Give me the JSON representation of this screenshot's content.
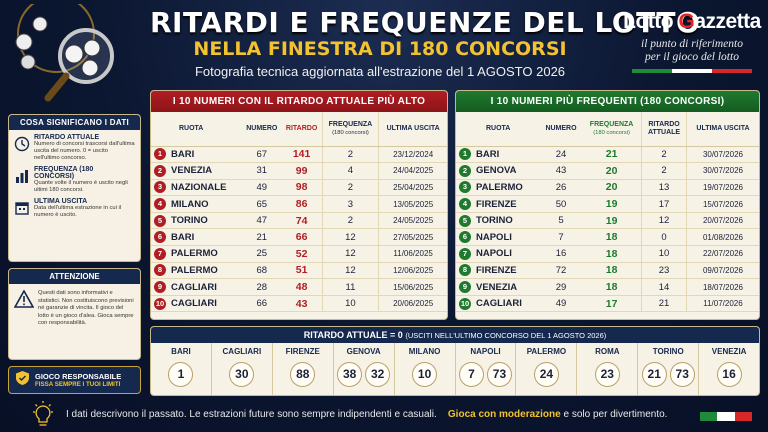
{
  "header": {
    "title": "RITARDI E FREQUENZE DEL LOTTO",
    "subtitle": "NELLA FINESTRA DI 180 CONCORSI",
    "tagline": "Fotografia tecnica aggiornata all'estrazione del 1 AGOSTO 2026",
    "brand_name_a": "Lotto ",
    "brand_name_g": "G",
    "brand_name_b": "azzetta",
    "brand_slogan_1": "il punto di riferimento",
    "brand_slogan_2": "per il gioco del lotto",
    "flag_colors": [
      "#1f8a3a",
      "#ffffff",
      "#d62828"
    ]
  },
  "info": {
    "heading": "COSA SIGNIFICANO I DATI",
    "items": [
      {
        "icon": "clock-icon",
        "title": "RITARDO ATTUALE",
        "text": "Numero di concorsi trascorsi dall'ultima uscita del numero. 0 = uscito nell'ultimo concorso."
      },
      {
        "icon": "bar-chart-icon",
        "title": "FREQUENZA (180 CONCORSI)",
        "text": "Quante volte il numero è uscito negli ultimi 180 concorsi."
      },
      {
        "icon": "calendar-icon",
        "title": "ULTIMA USCITA",
        "text": "Data dell'ultima estrazione in cui il numero è uscito."
      }
    ]
  },
  "warning": {
    "heading": "ATTENZIONE",
    "text": "Questi dati sono informativi e statistici. Non costituiscono previsioni né garanzie di vincita. Il gioco del lotto è un gioco d'alea. Gioca sempre con responsabilità."
  },
  "responsible": {
    "title": "GIOCO RESPONSABILE",
    "subtitle": "FISSA SEMPRE I TUOI LIMITI"
  },
  "ritardo_table": {
    "heading": "I 10 NUMERI CON IL RITARDO ATTUALE PIÙ ALTO",
    "columns": {
      "ruota": "RUOTA",
      "numero": "NUMERO",
      "ritardo": "RITARDO",
      "frequenza": "FREQUENZA",
      "frequenza_sub": "(180 concorsi)",
      "ultima": "ULTIMA USCITA"
    },
    "rows": [
      {
        "rank": "1",
        "ruota": "BARI",
        "numero": "67",
        "ritardo": "141",
        "frequenza": "2",
        "ultima": "23/12/2024"
      },
      {
        "rank": "2",
        "ruota": "VENEZIA",
        "numero": "31",
        "ritardo": "99",
        "frequenza": "4",
        "ultima": "24/04/2025"
      },
      {
        "rank": "3",
        "ruota": "NAZIONALE",
        "numero": "49",
        "ritardo": "98",
        "frequenza": "2",
        "ultima": "25/04/2025"
      },
      {
        "rank": "4",
        "ruota": "MILANO",
        "numero": "65",
        "ritardo": "86",
        "frequenza": "3",
        "ultima": "13/05/2025"
      },
      {
        "rank": "5",
        "ruota": "TORINO",
        "numero": "47",
        "ritardo": "74",
        "frequenza": "2",
        "ultima": "24/05/2025"
      },
      {
        "rank": "6",
        "ruota": "BARI",
        "numero": "21",
        "ritardo": "66",
        "frequenza": "12",
        "ultima": "27/05/2025"
      },
      {
        "rank": "7",
        "ruota": "PALERMO",
        "numero": "25",
        "ritardo": "52",
        "frequenza": "12",
        "ultima": "11/06/2025"
      },
      {
        "rank": "8",
        "ruota": "PALERMO",
        "numero": "68",
        "ritardo": "51",
        "frequenza": "12",
        "ultima": "12/06/2025"
      },
      {
        "rank": "9",
        "ruota": "CAGLIARI",
        "numero": "28",
        "ritardo": "48",
        "frequenza": "11",
        "ultima": "15/06/2025"
      },
      {
        "rank": "10",
        "ruota": "CAGLIARI",
        "numero": "66",
        "ritardo": "43",
        "frequenza": "10",
        "ultima": "20/06/2025"
      }
    ]
  },
  "frequenti_table": {
    "heading": "I 10 NUMERI PIÙ FREQUENTI (180 CONCORSI)",
    "columns": {
      "ruota": "RUOTA",
      "numero": "NUMERO",
      "frequenza": "FREQUENZA",
      "frequenza_sub": "(180 concorsi)",
      "ritardo": "RITARDO",
      "ritardo_sub": "ATTUALE",
      "ultima": "ULTIMA USCITA"
    },
    "rows": [
      {
        "rank": "1",
        "ruota": "BARI",
        "numero": "24",
        "frequenza": "21",
        "ritardo": "2",
        "ultima": "30/07/2026"
      },
      {
        "rank": "2",
        "ruota": "GENOVA",
        "numero": "43",
        "frequenza": "20",
        "ritardo": "2",
        "ultima": "30/07/2026"
      },
      {
        "rank": "3",
        "ruota": "PALERMO",
        "numero": "26",
        "frequenza": "20",
        "ritardo": "13",
        "ultima": "19/07/2026"
      },
      {
        "rank": "4",
        "ruota": "FIRENZE",
        "numero": "50",
        "frequenza": "19",
        "ritardo": "17",
        "ultima": "15/07/2026"
      },
      {
        "rank": "5",
        "ruota": "TORINO",
        "numero": "5",
        "frequenza": "19",
        "ritardo": "12",
        "ultima": "20/07/2026"
      },
      {
        "rank": "6",
        "ruota": "NAPOLI",
        "numero": "7",
        "frequenza": "18",
        "ritardo": "0",
        "ultima": "01/08/2026"
      },
      {
        "rank": "7",
        "ruota": "NAPOLI",
        "numero": "16",
        "frequenza": "18",
        "ritardo": "10",
        "ultima": "22/07/2026"
      },
      {
        "rank": "8",
        "ruota": "FIRENZE",
        "numero": "72",
        "frequenza": "18",
        "ritardo": "23",
        "ultima": "09/07/2026"
      },
      {
        "rank": "9",
        "ruota": "VENEZIA",
        "numero": "29",
        "frequenza": "18",
        "ritardo": "14",
        "ultima": "18/07/2026"
      },
      {
        "rank": "10",
        "ruota": "CAGLIARI",
        "numero": "49",
        "frequenza": "17",
        "ritardo": "21",
        "ultima": "11/07/2026"
      }
    ]
  },
  "zero_strip": {
    "heading": "RITARDO ATTUALE = 0",
    "heading_sub": "(USCITI NELL'ULTIMO CONCORSO DEL 1 AGOSTO 2026)",
    "wheels": [
      {
        "name": "BARI",
        "numbers": [
          "1"
        ]
      },
      {
        "name": "CAGLIARI",
        "numbers": [
          "30"
        ]
      },
      {
        "name": "FIRENZE",
        "numbers": [
          "88"
        ]
      },
      {
        "name": "GENOVA",
        "numbers": [
          "38",
          "32"
        ]
      },
      {
        "name": "MILANO",
        "numbers": [
          "10"
        ]
      },
      {
        "name": "NAPOLI",
        "numbers": [
          "7",
          "73"
        ]
      },
      {
        "name": "PALERMO",
        "numbers": [
          "24"
        ]
      },
      {
        "name": "ROMA",
        "numbers": [
          "23"
        ]
      },
      {
        "name": "TORINO",
        "numbers": [
          "21",
          "73"
        ]
      },
      {
        "name": "VENEZIA",
        "numbers": [
          "16"
        ]
      }
    ]
  },
  "footer": {
    "text_a": "I dati descrivono il passato. Le estrazioni future sono sempre indipendenti e casuali.",
    "text_accent": "Gioca con moderazione",
    "text_b": " e solo per divertimento."
  }
}
